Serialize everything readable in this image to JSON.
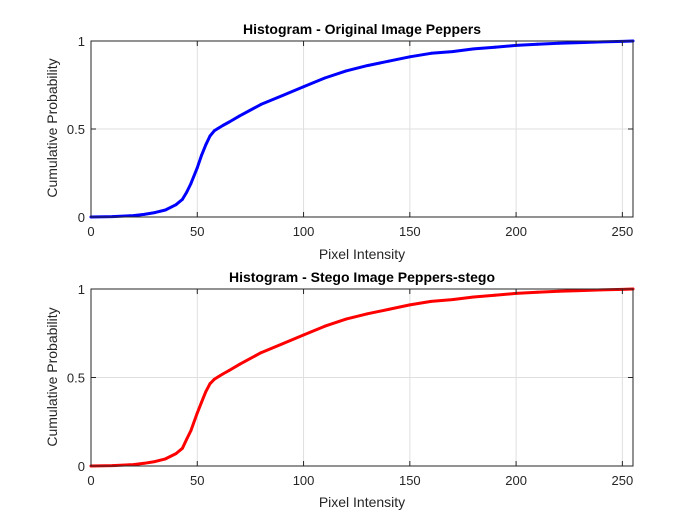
{
  "chart_data": [
    {
      "type": "line",
      "title": "Histogram - Original Image Peppers",
      "xlabel": "Pixel Intensity",
      "ylabel": "Cumulative Probability",
      "xlim": [
        0,
        255
      ],
      "ylim": [
        0,
        1
      ],
      "xticks": [
        0,
        50,
        100,
        150,
        200,
        250
      ],
      "yticks": [
        0,
        0.5,
        1
      ],
      "xtick_labels": [
        "0",
        "50",
        "100",
        "150",
        "200",
        "250"
      ],
      "ytick_labels": [
        "0",
        "0.5",
        "1"
      ],
      "grid": true,
      "series": [
        {
          "color": "#0000ff",
          "x": [
            0,
            10,
            20,
            25,
            30,
            35,
            40,
            43,
            45,
            47,
            50,
            52,
            54,
            56,
            58,
            60,
            62,
            65,
            70,
            80,
            90,
            100,
            110,
            120,
            130,
            140,
            150,
            160,
            170,
            180,
            190,
            200,
            210,
            220,
            230,
            240,
            250,
            255
          ],
          "y": [
            0.0,
            0.002,
            0.008,
            0.015,
            0.025,
            0.04,
            0.07,
            0.1,
            0.14,
            0.19,
            0.28,
            0.35,
            0.41,
            0.46,
            0.49,
            0.505,
            0.52,
            0.54,
            0.575,
            0.64,
            0.69,
            0.74,
            0.79,
            0.83,
            0.86,
            0.885,
            0.91,
            0.93,
            0.94,
            0.955,
            0.965,
            0.975,
            0.982,
            0.987,
            0.991,
            0.995,
            0.998,
            1.0
          ]
        }
      ]
    },
    {
      "type": "line",
      "title": "Histogram - Stego Image Peppers-stego",
      "xlabel": "Pixel Intensity",
      "ylabel": "Cumulative Probability",
      "xlim": [
        0,
        255
      ],
      "ylim": [
        0,
        1
      ],
      "xticks": [
        0,
        50,
        100,
        150,
        200,
        250
      ],
      "yticks": [
        0,
        0.5,
        1
      ],
      "xtick_labels": [
        "0",
        "50",
        "100",
        "150",
        "200",
        "250"
      ],
      "ytick_labels": [
        "0",
        "0.5",
        "1"
      ],
      "grid": true,
      "series": [
        {
          "color": "#ff0000",
          "x": [
            0,
            10,
            20,
            25,
            30,
            35,
            40,
            43,
            45,
            47,
            50,
            52,
            54,
            56,
            58,
            60,
            62,
            65,
            70,
            80,
            90,
            100,
            110,
            120,
            130,
            140,
            150,
            160,
            170,
            180,
            190,
            200,
            210,
            220,
            230,
            240,
            250,
            255
          ],
          "y": [
            0.0,
            0.002,
            0.008,
            0.015,
            0.025,
            0.04,
            0.07,
            0.1,
            0.15,
            0.2,
            0.3,
            0.36,
            0.42,
            0.465,
            0.49,
            0.505,
            0.52,
            0.54,
            0.575,
            0.64,
            0.69,
            0.74,
            0.79,
            0.83,
            0.86,
            0.885,
            0.91,
            0.93,
            0.94,
            0.955,
            0.965,
            0.975,
            0.982,
            0.987,
            0.991,
            0.995,
            0.998,
            1.0
          ]
        }
      ]
    }
  ]
}
